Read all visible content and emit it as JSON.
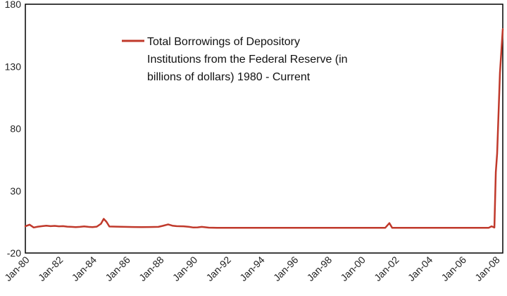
{
  "chart_data": {
    "type": "line",
    "title": "",
    "xlabel": "",
    "ylabel": "",
    "ylim": [
      -20,
      180
    ],
    "yticks": [
      -20,
      30,
      80,
      130,
      180
    ],
    "xlim": [
      "1980-01",
      "2008-06"
    ],
    "xticks": [
      "Jan-80",
      "Jan-82",
      "Jan-84",
      "Jan-86",
      "Jan-88",
      "Jan-90",
      "Jan-92",
      "Jan-94",
      "Jan-96",
      "Jan-98",
      "Jan-00",
      "Jan-02",
      "Jan-04",
      "Jan-06",
      "Jan-08"
    ],
    "grid": false,
    "legend": {
      "placement": "top-left",
      "lines": [
        "Total Borrowings of Depository",
        "Institutions from the Federal Reserve (in",
        "billions of dollars)   1980 - Current"
      ]
    },
    "series": [
      {
        "name": "Total Borrowings of Depository Institutions from the Federal Reserve (in billions of dollars)   1980 - Current",
        "color": "#c0392b",
        "points": [
          [
            "1980-01",
            1.5
          ],
          [
            "1980-04",
            2.8
          ],
          [
            "1980-07",
            0.5
          ],
          [
            "1980-10",
            1.2
          ],
          [
            "1981-01",
            1.6
          ],
          [
            "1981-04",
            2.0
          ],
          [
            "1981-07",
            1.6
          ],
          [
            "1981-10",
            1.8
          ],
          [
            "1982-01",
            1.5
          ],
          [
            "1982-04",
            1.6
          ],
          [
            "1982-07",
            1.2
          ],
          [
            "1982-10",
            1.0
          ],
          [
            "1983-01",
            0.8
          ],
          [
            "1983-04",
            1.0
          ],
          [
            "1983-07",
            1.4
          ],
          [
            "1983-10",
            1.0
          ],
          [
            "1984-01",
            0.8
          ],
          [
            "1984-04",
            1.2
          ],
          [
            "1984-07",
            3.5
          ],
          [
            "1984-09",
            7.5
          ],
          [
            "1984-11",
            5.0
          ],
          [
            "1985-01",
            1.3
          ],
          [
            "1985-06",
            1.2
          ],
          [
            "1985-12",
            1.0
          ],
          [
            "1986-06",
            0.9
          ],
          [
            "1986-12",
            0.8
          ],
          [
            "1987-06",
            0.9
          ],
          [
            "1987-12",
            1.0
          ],
          [
            "1988-03",
            1.8
          ],
          [
            "1988-07",
            3.0
          ],
          [
            "1988-10",
            2.0
          ],
          [
            "1989-01",
            1.6
          ],
          [
            "1989-06",
            1.5
          ],
          [
            "1989-10",
            1.0
          ],
          [
            "1990-01",
            0.5
          ],
          [
            "1990-04",
            0.6
          ],
          [
            "1990-07",
            1.0
          ],
          [
            "1990-12",
            0.4
          ],
          [
            "1991-06",
            0.3
          ],
          [
            "1991-12",
            0.3
          ],
          [
            "1992-06",
            0.2
          ],
          [
            "1994-01",
            0.2
          ],
          [
            "1996-01",
            0.2
          ],
          [
            "1998-01",
            0.2
          ],
          [
            "2000-01",
            0.2
          ],
          [
            "2001-06",
            0.2
          ],
          [
            "2001-09",
            4.0
          ],
          [
            "2001-11",
            0.3
          ],
          [
            "2004-01",
            0.2
          ],
          [
            "2006-01",
            0.2
          ],
          [
            "2007-08",
            0.3
          ],
          [
            "2007-10",
            1.5
          ],
          [
            "2007-12",
            0.5
          ],
          [
            "2008-01",
            45
          ],
          [
            "2008-02",
            60
          ],
          [
            "2008-04",
            125
          ],
          [
            "2008-06",
            160
          ]
        ]
      }
    ]
  }
}
